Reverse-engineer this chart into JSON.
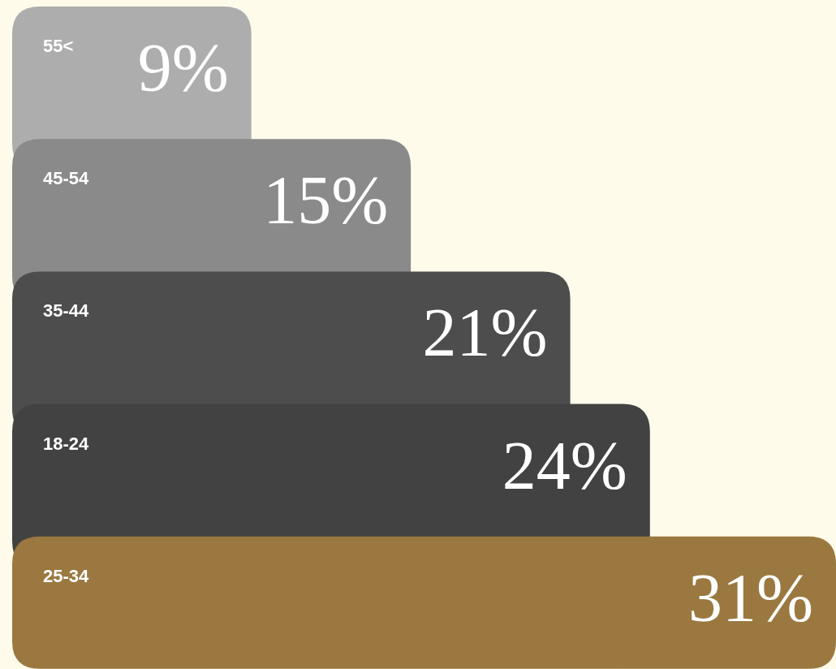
{
  "chart_data": {
    "type": "bar",
    "orientation": "horizontal",
    "categories": [
      "55<",
      "45-54",
      "35-44",
      "18-24",
      "25-34"
    ],
    "values": [
      9,
      15,
      21,
      24,
      31
    ],
    "value_labels": [
      "9%",
      "15%",
      "21%",
      "24%",
      "31%"
    ],
    "colors": [
      "#adadad",
      "#8a8a8a",
      "#4d4d4d",
      "#424242",
      "#9a7840"
    ],
    "legend": false,
    "grid": false
  }
}
